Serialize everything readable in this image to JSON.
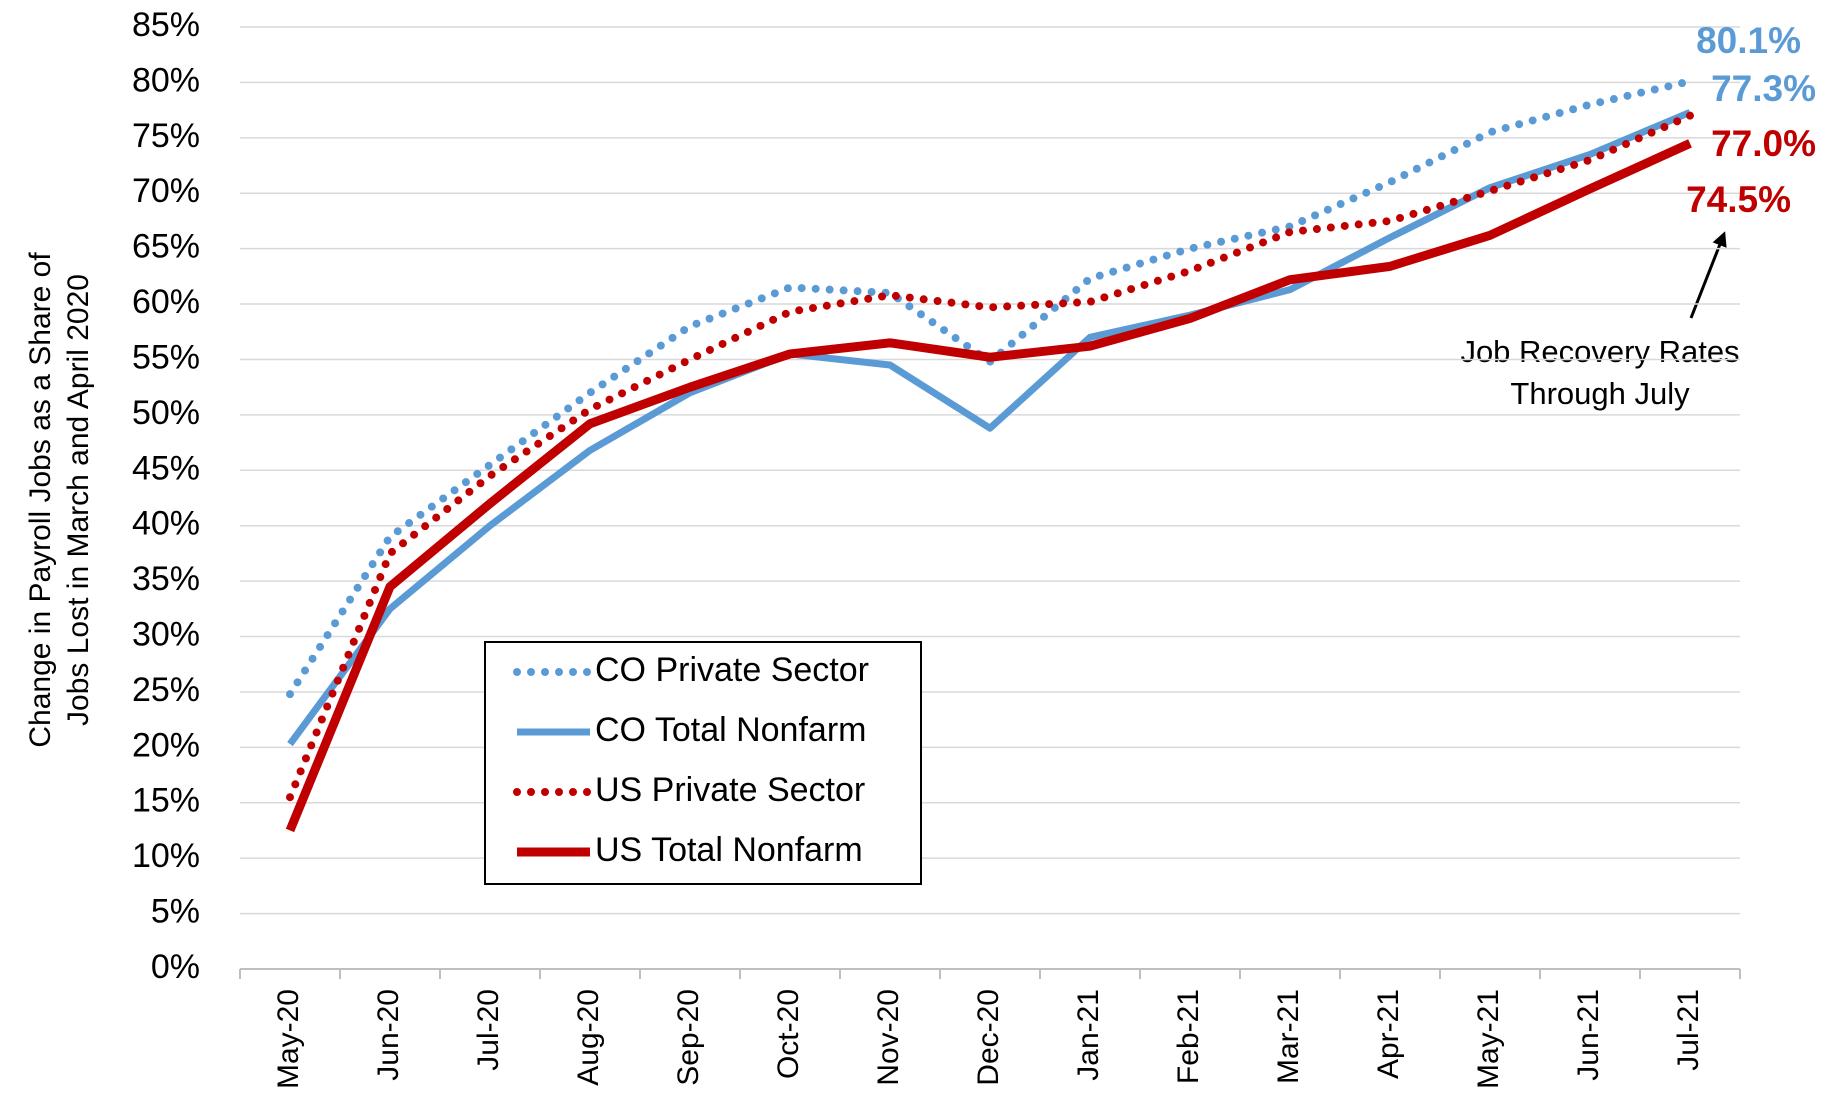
{
  "chart_data": {
    "type": "line",
    "y_axis_label": [
      "Change in Payroll Jobs as a Share of",
      "Jobs Lost in March and April 2020"
    ],
    "categories": [
      "May-20",
      "Jun-20",
      "Jul-20",
      "Aug-20",
      "Sep-20",
      "Oct-20",
      "Nov-20",
      "Dec-20",
      "Jan-21",
      "Feb-21",
      "Mar-21",
      "Apr-21",
      "May-21",
      "Jun-21",
      "Jul-21"
    ],
    "series": [
      {
        "name": "CO Private Sector",
        "color": "#5b9bd5",
        "dash": "dotted",
        "values": [
          24.8,
          39,
          45.5,
          52,
          58,
          61.5,
          61,
          54.8,
          62.3,
          65,
          67,
          71,
          75.5,
          78,
          80.1
        ],
        "value_labels": [
          null,
          null,
          null,
          null,
          null,
          null,
          null,
          null,
          null,
          null,
          null,
          null,
          null,
          null,
          "80.1%"
        ]
      },
      {
        "name": "CO Total Nonfarm",
        "color": "#5b9bd5",
        "dash": "solid",
        "values": [
          20.3,
          32.5,
          40,
          46.8,
          52,
          55.5,
          54.5,
          48.8,
          57,
          59,
          61.3,
          66,
          70.5,
          73.5,
          77.3
        ],
        "value_labels": [
          null,
          null,
          null,
          null,
          null,
          null,
          null,
          null,
          null,
          null,
          null,
          null,
          null,
          null,
          "77.3%"
        ]
      },
      {
        "name": "US Private Sector",
        "color": "#c00000",
        "dash": "dotted",
        "values": [
          15.5,
          37.5,
          44.5,
          50.5,
          55,
          59.3,
          60.8,
          59.7,
          60.2,
          63,
          66.5,
          67.5,
          70.2,
          73,
          77.0
        ],
        "value_labels": [
          null,
          null,
          null,
          null,
          null,
          null,
          null,
          null,
          null,
          null,
          null,
          null,
          null,
          null,
          "77.0%"
        ]
      },
      {
        "name": "US Total Nonfarm",
        "color": "#c00000",
        "dash": "solid",
        "values": [
          12.5,
          34.5,
          42,
          49.2,
          52.5,
          55.5,
          56.5,
          55.2,
          56.2,
          58.7,
          62.2,
          63.4,
          66.2,
          70.4,
          74.5
        ],
        "value_labels": [
          null,
          null,
          null,
          null,
          null,
          null,
          null,
          null,
          null,
          null,
          null,
          null,
          null,
          null,
          "74.5%"
        ]
      }
    ],
    "annotation": [
      "Job Recovery Rates",
      "Through July"
    ],
    "ylim": [
      0,
      85
    ],
    "yticks": [
      {
        "value": 0,
        "label": "0%"
      },
      {
        "value": 5,
        "label": "5%"
      },
      {
        "value": 10,
        "label": "10%"
      },
      {
        "value": 15,
        "label": "15%"
      },
      {
        "value": 20,
        "label": "20%"
      },
      {
        "value": 25,
        "label": "25%"
      },
      {
        "value": 30,
        "label": "30%"
      },
      {
        "value": 35,
        "label": "35%"
      },
      {
        "value": 40,
        "label": "40%"
      },
      {
        "value": 45,
        "label": "45%"
      },
      {
        "value": 50,
        "label": "50%"
      },
      {
        "value": 55,
        "label": "55%"
      },
      {
        "value": 60,
        "label": "60%"
      },
      {
        "value": 65,
        "label": "65%"
      },
      {
        "value": 70,
        "label": "70%"
      },
      {
        "value": 75,
        "label": "75%"
      },
      {
        "value": 80,
        "label": "80%"
      },
      {
        "value": 85,
        "label": "85%"
      }
    ],
    "grid": true
  }
}
